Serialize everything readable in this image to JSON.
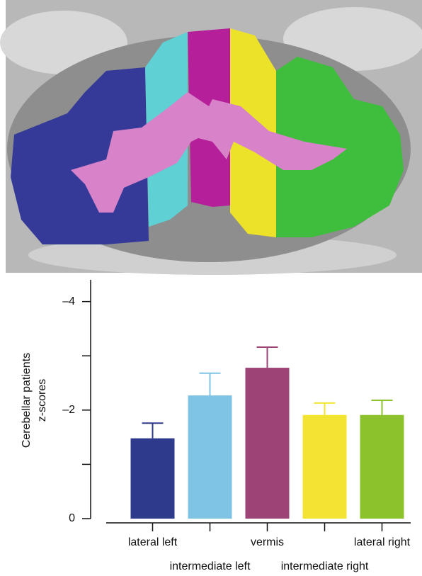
{
  "chart_data": {
    "type": "bar",
    "ylabel_lines": [
      "Cerebellar patients",
      "z-scores"
    ],
    "categories": [
      "lateral left",
      "intermediate left",
      "vermis",
      "intermediate right",
      "lateral right"
    ],
    "values": [
      -1.48,
      -2.27,
      -2.78,
      -1.91,
      -1.91
    ],
    "errors": [
      0.28,
      0.41,
      0.38,
      0.22,
      0.27
    ],
    "colors": [
      "#2e3a8c",
      "#7fc4e4",
      "#9b4475",
      "#f3e434",
      "#8cc22b"
    ],
    "ylim": [
      0,
      -4.4
    ],
    "yticks": [
      {
        "value": -4,
        "label": "–4"
      },
      {
        "value": -2,
        "label": "–2"
      },
      0
    ],
    "minor_yticks": [
      -3,
      -1
    ]
  }
}
